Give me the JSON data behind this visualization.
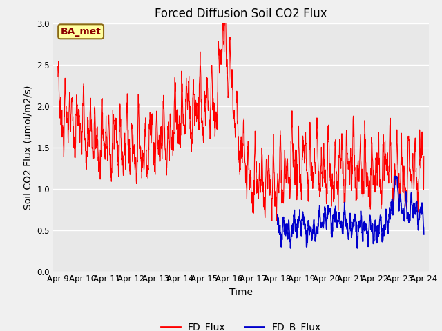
{
  "title": "Forced Diffusion Soil CO2 Flux",
  "xlabel": "Time",
  "ylabel": "Soil CO2 Flux (umol/m2/s)",
  "ylim": [
    0.0,
    3.0
  ],
  "yticks": [
    0.0,
    0.5,
    1.0,
    1.5,
    2.0,
    2.5,
    3.0
  ],
  "x_tick_labels": [
    "Apr 9",
    "Apr 10",
    "Apr 11",
    "Apr 12",
    "Apr 13",
    "Apr 14",
    "Apr 15",
    "Apr 16",
    "Apr 17",
    "Apr 18",
    "Apr 19",
    "Apr 20",
    "Apr 21",
    "Apr 22",
    "Apr 23",
    "Apr 24"
  ],
  "annotation_text": "BA_met",
  "annotation_color": "#8B0000",
  "annotation_bg": "#FFFFA0",
  "annotation_border": "#8B6914",
  "fd_flux_color": "#FF0000",
  "fd_b_flux_color": "#0000CC",
  "fig_bg_color": "#F0F0F0",
  "plot_bg_color": "#E8E8E8",
  "legend_labels": [
    "FD_Flux",
    "FD_B_Flux"
  ],
  "grid_color": "#FFFFFF",
  "title_fontsize": 12,
  "axis_label_fontsize": 10,
  "tick_fontsize": 8.5
}
